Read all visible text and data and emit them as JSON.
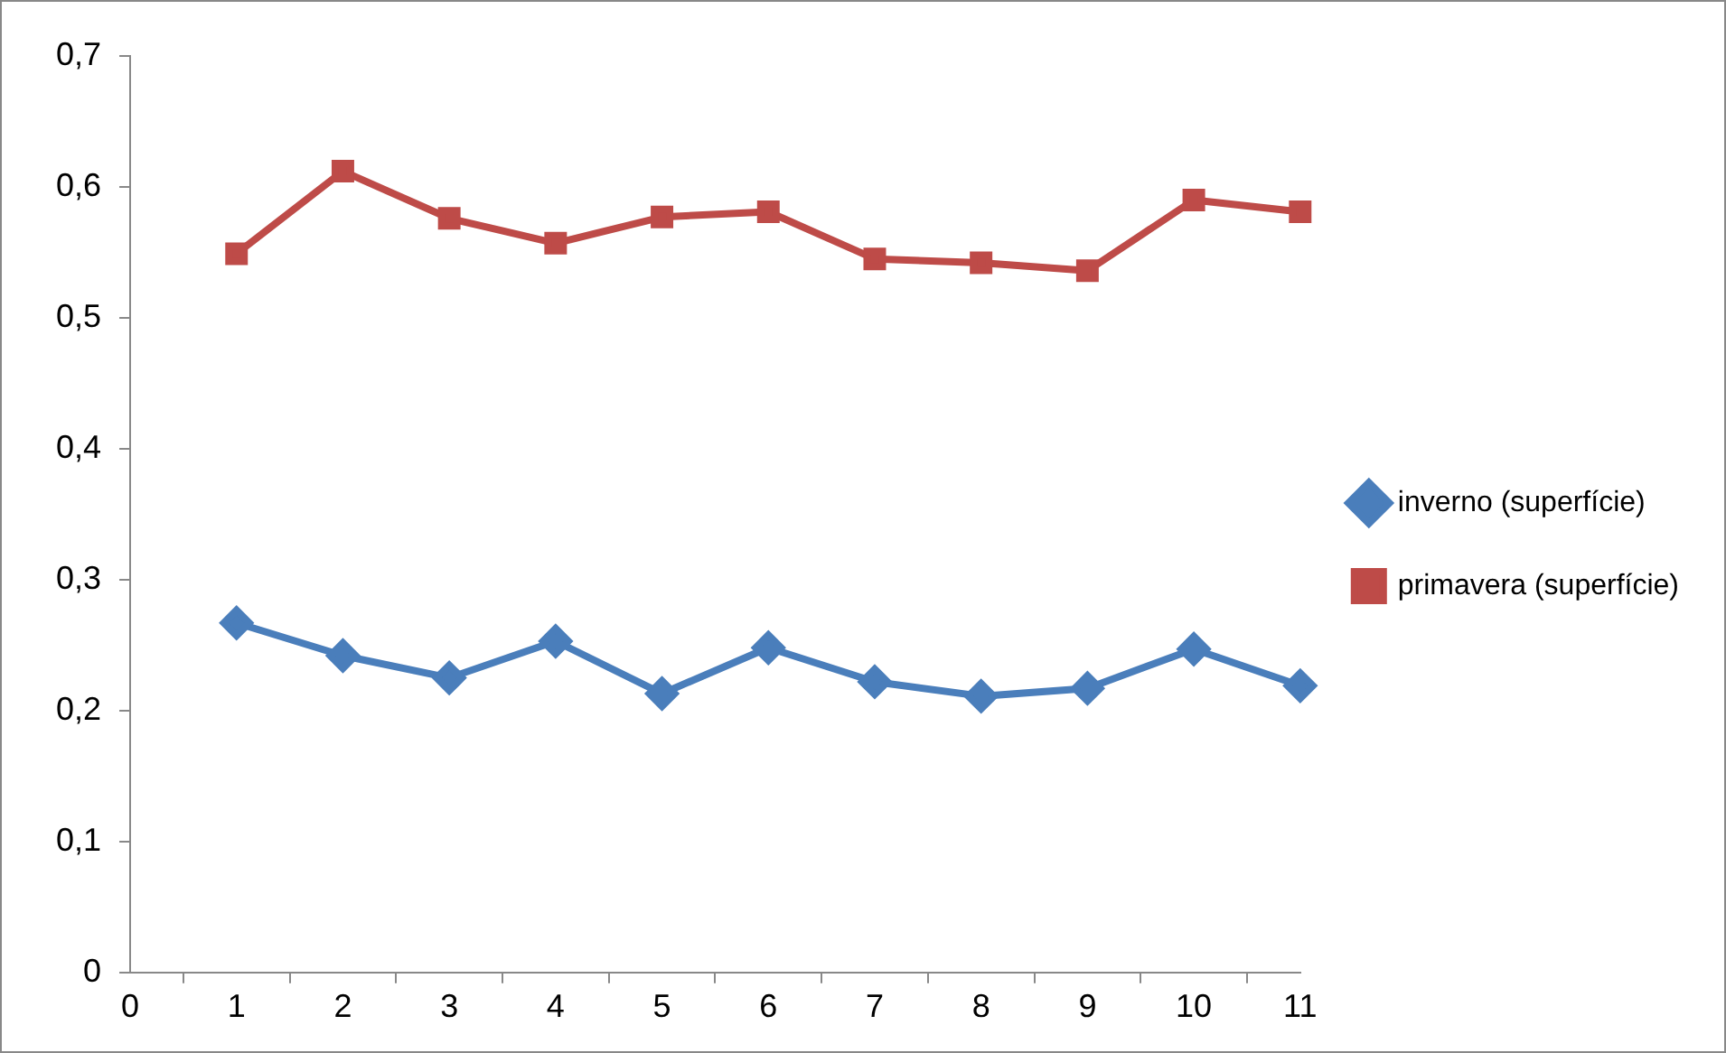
{
  "chart_data": {
    "type": "line",
    "categories": [
      "0",
      "1",
      "2",
      "3",
      "4",
      "5",
      "6",
      "7",
      "8",
      "9",
      "10",
      "11"
    ],
    "ylim": [
      0,
      0.7
    ],
    "yticks": [
      {
        "value": 0,
        "label": "0"
      },
      {
        "value": 0.1,
        "label": "0,1"
      },
      {
        "value": 0.2,
        "label": "0,2"
      },
      {
        "value": 0.3,
        "label": "0,3"
      },
      {
        "value": 0.4,
        "label": "0,4"
      },
      {
        "value": 0.5,
        "label": "0,5"
      },
      {
        "value": 0.6,
        "label": "0,6"
      },
      {
        "value": 0.7,
        "label": "0,7"
      }
    ],
    "grid": false,
    "legend": "right",
    "line_style": "solid",
    "series": [
      {
        "name": "inverno (superfície)",
        "color": "#4a7ebb",
        "marker": "diamond",
        "values": [
          null,
          0.267,
          0.242,
          0.225,
          0.253,
          0.213,
          0.248,
          0.222,
          0.211,
          0.217,
          0.247,
          0.219
        ]
      },
      {
        "name": "primavera (superfície)",
        "color": "#be4b48",
        "marker": "square",
        "values": [
          null,
          0.549,
          0.612,
          0.576,
          0.557,
          0.577,
          0.581,
          0.545,
          0.542,
          0.536,
          0.59,
          0.581
        ]
      }
    ]
  }
}
